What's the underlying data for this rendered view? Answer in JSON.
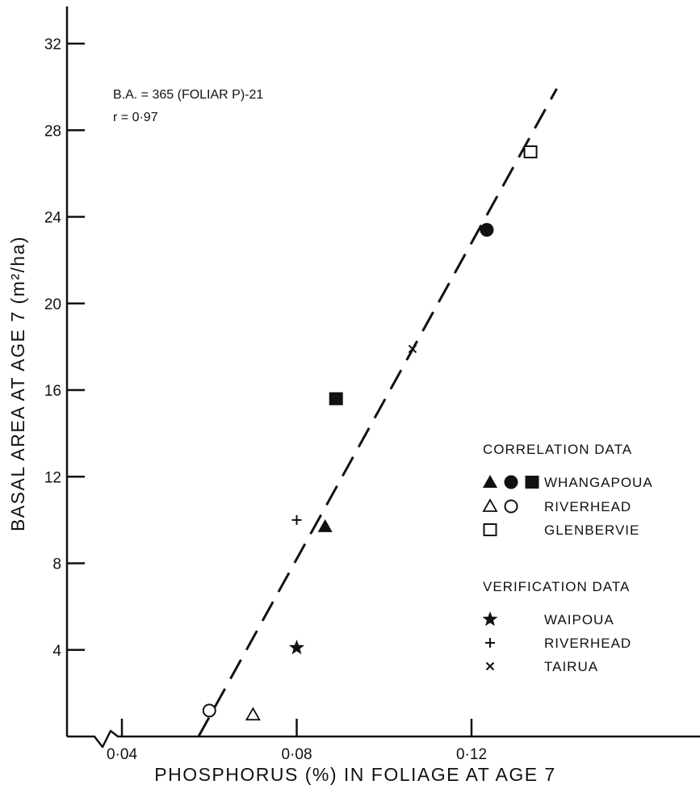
{
  "chart_data": {
    "type": "scatter",
    "title": "",
    "xlabel": "PHOSPHORUS (%) IN FOLIAGE AT AGE 7",
    "ylabel_main": "BASAL AREA AT AGE 7",
    "ylabel_unit": "(m²/ha)",
    "xlim": [
      0.03,
      0.15
    ],
    "ylim": [
      0,
      34
    ],
    "x_ticks": [
      {
        "value": 0.04,
        "label": "0·04"
      },
      {
        "value": 0.08,
        "label": "0·08"
      },
      {
        "value": 0.12,
        "label": "0·12"
      }
    ],
    "y_ticks": [
      {
        "value": 4,
        "label": "4"
      },
      {
        "value": 8,
        "label": "8"
      },
      {
        "value": 12,
        "label": "12"
      },
      {
        "value": 16,
        "label": "16"
      },
      {
        "value": 20,
        "label": "20"
      },
      {
        "value": 24,
        "label": "24"
      },
      {
        "value": 28,
        "label": "28"
      },
      {
        "value": 32,
        "label": "32"
      }
    ],
    "axis_break": true,
    "grid": false,
    "annotation": {
      "lines": [
        "B.A. = 365 (FOLIAR  P)-21",
        "r = 0·97"
      ]
    },
    "fit_line": {
      "style": "dashed",
      "slope": 365,
      "intercept": -21,
      "x_range": [
        0.0575,
        0.1395
      ]
    },
    "series": [
      {
        "group": "correlation",
        "site": "WHANGAPOUA",
        "marker": "filled-triangle",
        "points": [
          [
            0.0865,
            9.7
          ]
        ]
      },
      {
        "group": "correlation",
        "site": "WHANGAPOUA",
        "marker": "filled-circle",
        "points": [
          [
            0.1235,
            23.4
          ]
        ]
      },
      {
        "group": "correlation",
        "site": "WHANGAPOUA",
        "marker": "filled-square",
        "points": [
          [
            0.089,
            15.6
          ]
        ]
      },
      {
        "group": "correlation",
        "site": "RIVERHEAD",
        "marker": "open-triangle",
        "points": [
          [
            0.07,
            1.0
          ]
        ]
      },
      {
        "group": "correlation",
        "site": "RIVERHEAD",
        "marker": "open-circle",
        "points": [
          [
            0.06,
            1.2
          ]
        ]
      },
      {
        "group": "correlation",
        "site": "GLENBERVIE",
        "marker": "open-square",
        "points": [
          [
            0.1335,
            27.0
          ]
        ]
      },
      {
        "group": "verification",
        "site": "WAIPOUA",
        "marker": "star",
        "points": [
          [
            0.08,
            4.1
          ]
        ]
      },
      {
        "group": "verification",
        "site": "RIVERHEAD",
        "marker": "plus",
        "points": [
          [
            0.08,
            10.0
          ]
        ]
      },
      {
        "group": "verification",
        "site": "TAIRUA",
        "marker": "cross",
        "points": [
          [
            0.1065,
            17.9
          ]
        ]
      }
    ],
    "legend": {
      "placement": "right",
      "sections": [
        {
          "heading": "CORRELATION DATA",
          "entries": [
            {
              "markers": [
                "filled-triangle",
                "filled-circle",
                "filled-square"
              ],
              "label": "WHANGAPOUA"
            },
            {
              "markers": [
                "open-triangle",
                "open-circle"
              ],
              "label": "RIVERHEAD"
            },
            {
              "markers": [
                "open-square"
              ],
              "label": "GLENBERVIE"
            }
          ]
        },
        {
          "heading": "VERIFICATION DATA",
          "entries": [
            {
              "markers": [
                "star"
              ],
              "label": "WAIPOUA"
            },
            {
              "markers": [
                "plus"
              ],
              "label": "RIVERHEAD"
            },
            {
              "markers": [
                "cross"
              ],
              "label": "TAIRUA"
            }
          ]
        }
      ]
    },
    "colors": {
      "ink": "#111111",
      "background": "#ffffff"
    }
  }
}
